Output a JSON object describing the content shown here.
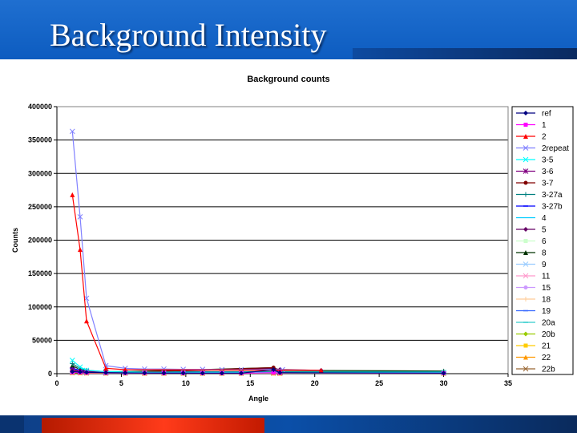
{
  "slide": {
    "title": "Background Intensity"
  },
  "chart_data": {
    "type": "line",
    "title": "Background counts",
    "xlabel": "Angle",
    "ylabel": "Counts",
    "xlim": [
      0,
      35
    ],
    "ylim": [
      0,
      400000
    ],
    "xticks": [
      0,
      5,
      10,
      15,
      20,
      25,
      30,
      35
    ],
    "yticks": [
      0,
      50000,
      100000,
      150000,
      200000,
      250000,
      300000,
      350000,
      400000
    ],
    "ytick_labels": [
      "0",
      "50000",
      "100000",
      "150000",
      "200000",
      "250000",
      "300000",
      "350000",
      "400000"
    ],
    "grid": "horizontal major",
    "legend": "right",
    "series": [
      {
        "name": "ref",
        "color": "#000080",
        "marker": "diamond",
        "x": [
          1.2,
          1.8,
          2.3,
          3.8,
          5.3,
          6.8,
          8.3,
          9.8,
          11.3,
          12.8,
          14.3,
          16.8,
          17.3,
          30
        ],
        "y": [
          3000,
          2500,
          2000,
          1500,
          1200,
          1000,
          900,
          900,
          800,
          800,
          800,
          6000,
          1500,
          800
        ]
      },
      {
        "name": "1",
        "color": "#ff00ff",
        "marker": "square",
        "x": [
          1.2,
          1.8,
          2.3,
          3.8,
          5.3,
          6.8,
          8.3,
          9.8,
          11.3,
          12.8,
          14.3,
          16.8,
          17.3,
          30
        ],
        "y": [
          2000,
          1800,
          1500,
          1200,
          1000,
          900,
          800,
          800,
          700,
          700,
          700,
          1500,
          1200,
          800
        ]
      },
      {
        "name": "2",
        "color": "#ff0000",
        "marker": "triangle",
        "x": [
          1.2,
          1.8,
          2.3,
          3.8,
          5.3,
          20.5
        ],
        "y": [
          268000,
          186000,
          79000,
          8000,
          6000,
          5000
        ]
      },
      {
        "name": "2repeat",
        "color": "#8080ff",
        "marker": "x",
        "x": [
          1.2,
          1.8,
          2.3,
          3.8,
          5.3,
          6.8,
          8.3,
          9.8,
          11.3,
          12.8,
          14.3,
          17.5
        ],
        "y": [
          363000,
          235000,
          113000,
          12000,
          8000,
          7000,
          7000,
          6500,
          6500,
          6000,
          6000,
          6000
        ]
      },
      {
        "name": "3-5",
        "color": "#00ffff",
        "marker": "x",
        "x": [
          1.2,
          1.8,
          2.3,
          3.8,
          5.3,
          9.8,
          30
        ],
        "y": [
          20000,
          10000,
          5000,
          3000,
          2500,
          2000,
          2000
        ]
      },
      {
        "name": "3-6",
        "color": "#800080",
        "marker": "star",
        "x": [
          1.2,
          1.8,
          2.3,
          3.8,
          5.3,
          17.3
        ],
        "y": [
          6000,
          4000,
          3000,
          2000,
          2000,
          2000
        ]
      },
      {
        "name": "3-7",
        "color": "#800000",
        "marker": "circle",
        "x": [
          1.2,
          1.8,
          2.3,
          3.8,
          5.3,
          16.8,
          17.3
        ],
        "y": [
          5000,
          3500,
          3000,
          2000,
          2000,
          9000,
          3000
        ]
      },
      {
        "name": "3-27a",
        "color": "#008080",
        "marker": "plus",
        "x": [
          1.2,
          1.8,
          2.3,
          3.8,
          5.3,
          30
        ],
        "y": [
          15000,
          8000,
          5000,
          3000,
          3000,
          3000
        ]
      },
      {
        "name": "3-27b",
        "color": "#0000ff",
        "marker": "dash",
        "x": [
          1.2,
          1.8,
          2.3,
          3.8,
          5.3,
          30
        ],
        "y": [
          8000,
          5000,
          3000,
          2000,
          2000,
          2000
        ]
      },
      {
        "name": "4",
        "color": "#00ccff",
        "marker": "none",
        "x": [
          1.2,
          1.8,
          2.3,
          3.8,
          5.3,
          30
        ],
        "y": [
          4000,
          3000,
          2500,
          2000,
          2000,
          2000
        ]
      },
      {
        "name": "5",
        "color": "#660066",
        "marker": "diamond",
        "x": [
          1.2,
          1.8,
          2.3,
          3.8,
          5.3,
          16.8,
          17.3,
          20.5
        ],
        "y": [
          5000,
          4000,
          3000,
          2000,
          2000,
          8000,
          6000,
          5000
        ]
      },
      {
        "name": "6",
        "color": "#ccffcc",
        "marker": "square",
        "x": [
          1.2,
          1.8,
          2.3,
          3.8,
          5.3,
          30
        ],
        "y": [
          3000,
          2500,
          2000,
          1500,
          1500,
          1500
        ]
      },
      {
        "name": "8",
        "color": "#003300",
        "marker": "triangle",
        "x": [
          1.2,
          1.8,
          2.3,
          3.8,
          5.3,
          16.8,
          17.3,
          30
        ],
        "y": [
          12000,
          6000,
          4000,
          3000,
          3000,
          9000,
          5000,
          4000
        ]
      },
      {
        "name": "9",
        "color": "#99ccff",
        "marker": "x",
        "x": [
          1.2,
          1.8,
          2.3,
          3.8,
          5.3,
          30
        ],
        "y": [
          3000,
          2500,
          2000,
          1500,
          1500,
          1500
        ]
      },
      {
        "name": "11",
        "color": "#ff99cc",
        "marker": "x",
        "x": [
          1.2,
          1.8,
          2.3,
          3.8,
          5.3,
          30
        ],
        "y": [
          2500,
          2000,
          1800,
          1500,
          1500,
          1500
        ]
      },
      {
        "name": "15",
        "color": "#cc99ff",
        "marker": "circle",
        "x": [
          1.2,
          1.8,
          2.3,
          3.8,
          5.3,
          30
        ],
        "y": [
          2500,
          2000,
          1800,
          1500,
          1500,
          1500
        ]
      },
      {
        "name": "18",
        "color": "#ffcc99",
        "marker": "plus",
        "x": [
          1.2,
          1.8,
          2.3,
          3.8,
          5.3,
          30
        ],
        "y": [
          2000,
          1800,
          1500,
          1200,
          1200,
          1200
        ]
      },
      {
        "name": "19",
        "color": "#3366ff",
        "marker": "dash",
        "x": [
          1.2,
          1.8,
          2.3,
          3.8,
          5.3,
          30
        ],
        "y": [
          2000,
          1800,
          1500,
          1200,
          1200,
          1200
        ]
      },
      {
        "name": "20a",
        "color": "#33cccc",
        "marker": "dash",
        "x": [
          1.2,
          1.8,
          2.3,
          3.8,
          5.3,
          30
        ],
        "y": [
          2000,
          1800,
          1500,
          1200,
          1200,
          1200
        ]
      },
      {
        "name": "20b",
        "color": "#99cc00",
        "marker": "diamond",
        "x": [
          1.2,
          1.8,
          2.3,
          3.8,
          5.3,
          30
        ],
        "y": [
          2000,
          1800,
          1500,
          1200,
          1200,
          1200
        ]
      },
      {
        "name": "21",
        "color": "#ffcc00",
        "marker": "square",
        "x": [
          1.2,
          1.8,
          2.3,
          3.8,
          5.3,
          6.8,
          8.3,
          9.8,
          11.3,
          12.8,
          14.3,
          16.8,
          17.3,
          30
        ],
        "y": [
          1500,
          1200,
          1000,
          900,
          900,
          800,
          800,
          800,
          800,
          800,
          800,
          900,
          800,
          800
        ]
      },
      {
        "name": "22",
        "color": "#ff9900",
        "marker": "triangle",
        "x": [
          1.2,
          1.8,
          2.3,
          3.8,
          5.3,
          6.8,
          8.3,
          9.8,
          11.3,
          12.8,
          14.3,
          16.8,
          17.3,
          30
        ],
        "y": [
          1500,
          1200,
          1000,
          900,
          900,
          800,
          800,
          800,
          800,
          800,
          800,
          900,
          800,
          800
        ]
      },
      {
        "name": "22b",
        "color": "#996633",
        "marker": "x",
        "x": [
          1.2,
          1.8,
          2.3,
          3.8,
          5.3,
          6.8,
          8.3,
          9.8,
          11.3,
          12.8,
          14.3,
          16.8,
          17.3,
          30
        ],
        "y": [
          1500,
          1200,
          1000,
          900,
          900,
          800,
          800,
          800,
          800,
          800,
          800,
          900,
          800,
          800
        ]
      }
    ]
  }
}
